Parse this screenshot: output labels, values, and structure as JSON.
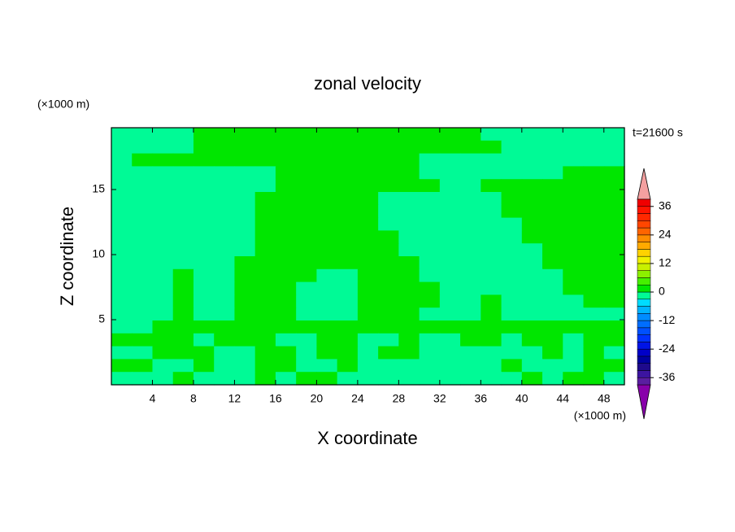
{
  "chart_data": {
    "type": "contour",
    "title": "zonal velocity",
    "subtitle": "t=21600 s",
    "x_label": "X coordinate",
    "y_label": "Z coordinate",
    "x_unit": "(×1000 m)",
    "y_unit": "(×1000 m)",
    "xlim": [
      0,
      50
    ],
    "ylim": [
      0,
      19.75
    ],
    "xticks": [
      4,
      8,
      12,
      16,
      20,
      24,
      28,
      32,
      36,
      40,
      44,
      48
    ],
    "yticks": [
      5,
      10,
      15
    ],
    "levels": [
      -39,
      -36,
      -33,
      -30,
      -27,
      -24,
      -21,
      -18,
      -15,
      -12,
      -9,
      -6,
      -3,
      0,
      3,
      6,
      9,
      12,
      15,
      18,
      21,
      24,
      27,
      30,
      33,
      36,
      39
    ],
    "colors": [
      "#8800aa",
      "#5a1ea0",
      "#3c14a0",
      "#1e0a8c",
      "#0000a0",
      "#0000c8",
      "#0014e6",
      "#0032ff",
      "#0050ff",
      "#006eff",
      "#008cff",
      "#00b4ff",
      "#00dcff",
      "#00fa96",
      "#00e600",
      "#46f000",
      "#8cf000",
      "#c8f000",
      "#f0f000",
      "#ffd200",
      "#ffaa00",
      "#ff8c00",
      "#ff6400",
      "#ff4600",
      "#ff2800",
      "#ff1400",
      "#f00000",
      "#f4a0a0"
    ],
    "colorbar_ticks": [
      -36,
      -24,
      -12,
      0,
      12,
      24,
      36
    ],
    "z": [
      [
        -1,
        -1,
        -1,
        -1,
        1,
        1,
        1,
        1,
        1,
        1,
        1,
        1,
        1,
        1,
        1,
        1,
        1,
        1,
        -1,
        -1,
        -1,
        -1,
        -1,
        -1,
        -1
      ],
      [
        -1,
        -1,
        -1,
        -1,
        1,
        1,
        1,
        1,
        1,
        1,
        1,
        1,
        1,
        1,
        1,
        1,
        1,
        1,
        1,
        -1,
        -1,
        -1,
        -1,
        -1,
        -1
      ],
      [
        -1,
        1,
        1,
        1,
        1,
        1,
        1,
        1,
        1,
        1,
        1,
        1,
        1,
        1,
        1,
        -1,
        -1,
        -1,
        -1,
        -1,
        -1,
        -1,
        -1,
        -1,
        -1
      ],
      [
        -1,
        -1,
        -1,
        -1,
        -1,
        -1,
        -1,
        -1,
        1,
        1,
        1,
        1,
        1,
        1,
        1,
        -1,
        -1,
        -1,
        -1,
        -1,
        -1,
        -1,
        1,
        1,
        1
      ],
      [
        -1,
        -1,
        -1,
        -1,
        -1,
        -1,
        -1,
        -1,
        1,
        1,
        1,
        1,
        1,
        1,
        1,
        1,
        -1,
        -1,
        1,
        1,
        1,
        1,
        1,
        1,
        1
      ],
      [
        -1,
        -1,
        -1,
        -1,
        -1,
        -1,
        -1,
        1,
        1,
        1,
        1,
        1,
        1,
        -1,
        -1,
        -1,
        -1,
        -1,
        -1,
        1,
        1,
        1,
        1,
        1,
        1
      ],
      [
        -1,
        -1,
        -1,
        -1,
        -1,
        -1,
        -1,
        1,
        1,
        1,
        1,
        1,
        1,
        -1,
        -1,
        -1,
        -1,
        -1,
        -1,
        1,
        1,
        1,
        1,
        1,
        1
      ],
      [
        -1,
        -1,
        -1,
        -1,
        -1,
        -1,
        -1,
        1,
        1,
        1,
        1,
        1,
        1,
        -1,
        -1,
        -1,
        -1,
        -1,
        -1,
        -1,
        1,
        1,
        1,
        1,
        1
      ],
      [
        -1,
        -1,
        -1,
        -1,
        -1,
        -1,
        -1,
        1,
        1,
        1,
        1,
        1,
        1,
        1,
        -1,
        -1,
        -1,
        -1,
        -1,
        -1,
        1,
        1,
        1,
        1,
        1
      ],
      [
        -1,
        -1,
        -1,
        -1,
        -1,
        -1,
        -1,
        1,
        1,
        1,
        1,
        1,
        1,
        1,
        -1,
        -1,
        -1,
        -1,
        -1,
        -1,
        -1,
        1,
        1,
        1,
        1
      ],
      [
        -1,
        -1,
        -1,
        -1,
        -1,
        -1,
        1,
        1,
        1,
        1,
        1,
        1,
        1,
        1,
        1,
        -1,
        -1,
        -1,
        -1,
        -1,
        -1,
        1,
        1,
        1,
        1
      ],
      [
        -1,
        -1,
        -1,
        1,
        -1,
        -1,
        1,
        1,
        1,
        1,
        -1,
        -1,
        1,
        1,
        1,
        -1,
        -1,
        -1,
        -1,
        -1,
        -1,
        -1,
        1,
        1,
        1
      ],
      [
        -1,
        -1,
        -1,
        1,
        -1,
        -1,
        1,
        1,
        1,
        -1,
        -1,
        -1,
        1,
        1,
        1,
        1,
        -1,
        -1,
        -1,
        -1,
        -1,
        -1,
        1,
        1,
        1
      ],
      [
        -1,
        -1,
        -1,
        1,
        -1,
        -1,
        1,
        1,
        1,
        -1,
        -1,
        -1,
        1,
        1,
        1,
        1,
        -1,
        -1,
        1,
        -1,
        -1,
        -1,
        -1,
        1,
        1
      ],
      [
        -1,
        -1,
        -1,
        1,
        -1,
        -1,
        1,
        1,
        1,
        -1,
        -1,
        -1,
        1,
        1,
        1,
        -1,
        -1,
        -1,
        1,
        -1,
        -1,
        -1,
        -1,
        -1,
        -1
      ],
      [
        -1,
        -1,
        1,
        1,
        1,
        1,
        1,
        1,
        1,
        1,
        1,
        1,
        1,
        1,
        1,
        1,
        1,
        1,
        1,
        1,
        1,
        1,
        1,
        1,
        1
      ],
      [
        1,
        1,
        1,
        1,
        -1,
        1,
        1,
        1,
        -1,
        -1,
        1,
        1,
        -1,
        -1,
        1,
        -1,
        -1,
        1,
        1,
        -1,
        1,
        1,
        -1,
        1,
        1
      ],
      [
        -1,
        -1,
        1,
        1,
        1,
        -1,
        -1,
        1,
        1,
        -1,
        1,
        1,
        -1,
        1,
        1,
        -1,
        -1,
        -1,
        -1,
        -1,
        -1,
        1,
        -1,
        1,
        -1
      ],
      [
        1,
        1,
        -1,
        -1,
        1,
        -1,
        -1,
        1,
        1,
        -1,
        -1,
        1,
        -1,
        -1,
        -1,
        -1,
        -1,
        -1,
        -1,
        1,
        -1,
        -1,
        -1,
        1,
        1
      ],
      [
        -1,
        -1,
        -1,
        1,
        -1,
        -1,
        -1,
        1,
        -1,
        1,
        1,
        -1,
        -1,
        -1,
        -1,
        -1,
        -1,
        -1,
        -1,
        -1,
        1,
        -1,
        1,
        1,
        -1
      ]
    ]
  }
}
